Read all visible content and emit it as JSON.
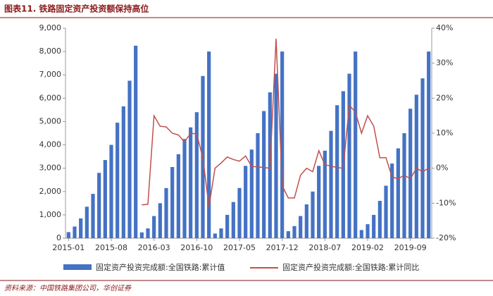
{
  "chart_data": {
    "type": "bar-line",
    "title": "图表11. 铁路固定资产投资额保持高位",
    "source": "资料来源：中国铁路集团公司，华创证券",
    "categories": [
      "2015-01",
      null,
      null,
      null,
      null,
      null,
      null,
      "2015-08",
      null,
      null,
      null,
      null,
      null,
      null,
      "2016-03",
      null,
      null,
      null,
      null,
      null,
      null,
      "2016-10",
      null,
      null,
      null,
      null,
      null,
      null,
      "2017-05",
      null,
      null,
      null,
      null,
      null,
      null,
      "2017-12",
      null,
      null,
      null,
      null,
      null,
      null,
      "2018-07",
      null,
      null,
      null,
      null,
      null,
      null,
      "2019-02",
      null,
      null,
      null,
      null,
      null,
      null,
      "2019-09",
      null,
      null,
      null
    ],
    "series": [
      {
        "name": "固定资产投资完成额:全国铁路:累计值",
        "color": "#4472c4",
        "values": [
          260,
          500,
          850,
          1350,
          1900,
          2800,
          3350,
          4000,
          4950,
          5650,
          6750,
          8250,
          250,
          420,
          950,
          1500,
          2150,
          3050,
          3600,
          4250,
          4750,
          5400,
          6950,
          8000,
          200,
          420,
          1000,
          1550,
          2150,
          3100,
          3800,
          4500,
          5450,
          6250,
          7050,
          8000,
          300,
          520,
          950,
          1450,
          2000,
          3100,
          3750,
          4600,
          5700,
          6300,
          7050,
          8000,
          350,
          600,
          1000,
          1600,
          2250,
          3200,
          3850,
          4500,
          5550,
          6150,
          6850,
          8000
        ]
      },
      {
        "name": "固定资产投资完成额:全国铁路:累计同比",
        "color": "#c0504d",
        "axis": "y2",
        "values": [
          null,
          null,
          null,
          null,
          null,
          null,
          null,
          null,
          null,
          null,
          null,
          null,
          -10.5,
          -10.3,
          15,
          12,
          11.8,
          10,
          9.5,
          7.5,
          10,
          9.8,
          3,
          -11,
          0,
          1.5,
          3.2,
          2.5,
          2,
          3.5,
          0.5,
          0.4,
          0.2,
          0,
          37,
          -5,
          -8.5,
          -8.5,
          -2,
          0,
          -1,
          5,
          1,
          0.6,
          0.2,
          0,
          18,
          16,
          10,
          15,
          12,
          3,
          3,
          -2.5,
          -3,
          -2,
          -3,
          0,
          -1,
          0
        ]
      }
    ],
    "ylim": [
      0,
      9000
    ],
    "yticks": [
      0,
      {
        "value": 1000,
        "label": "1,000"
      },
      {
        "value": 2000,
        "label": "2,000"
      },
      {
        "value": 3000,
        "label": "3,000"
      },
      {
        "value": 4000,
        "label": "4,000"
      },
      {
        "value": 5000,
        "label": "5,000"
      },
      {
        "value": 6000,
        "label": "6,000"
      },
      {
        "value": 7000,
        "label": "7,000"
      },
      {
        "value": 8000,
        "label": "8,000"
      },
      {
        "value": 9000,
        "label": "9,000"
      }
    ],
    "y2lim": [
      -20,
      40
    ],
    "y2ticks": [
      {
        "value": -20,
        "label": "-20%"
      },
      {
        "value": -10,
        "label": "-10%"
      },
      {
        "value": 0,
        "label": "0%"
      },
      {
        "value": 10,
        "label": "10%"
      },
      {
        "value": 20,
        "label": "20%"
      },
      {
        "value": 30,
        "label": "30%"
      },
      {
        "value": 40,
        "label": "40%"
      }
    ],
    "grid": false
  }
}
